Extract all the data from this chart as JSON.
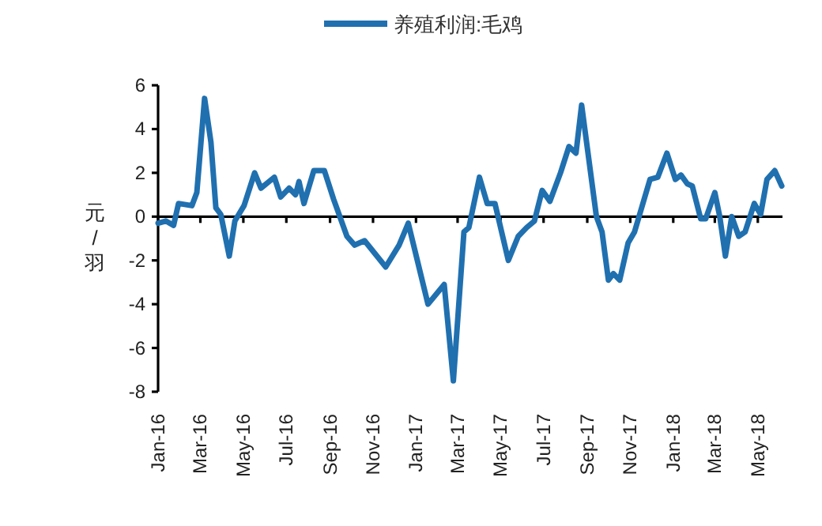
{
  "chart_data": {
    "type": "line",
    "ylabel": "元/羽",
    "legend": "top",
    "xlim": [
      "2016-01-01",
      "2018-06-05"
    ],
    "ylim": [
      -8,
      6
    ],
    "yticks": [
      -8,
      -6,
      -4,
      -2,
      0,
      2,
      4,
      6
    ],
    "xticks": [
      {
        "value": "2016-01-01",
        "label": "Jan-16"
      },
      {
        "value": "2016-03-01",
        "label": "Mar-16"
      },
      {
        "value": "2016-05-01",
        "label": "May-16"
      },
      {
        "value": "2016-07-01",
        "label": "Jul-16"
      },
      {
        "value": "2016-09-01",
        "label": "Sep-16"
      },
      {
        "value": "2016-11-01",
        "label": "Nov-16"
      },
      {
        "value": "2017-01-01",
        "label": "Jan-17"
      },
      {
        "value": "2017-03-01",
        "label": "Mar-17"
      },
      {
        "value": "2017-05-01",
        "label": "May-17"
      },
      {
        "value": "2017-07-01",
        "label": "Jul-17"
      },
      {
        "value": "2017-09-01",
        "label": "Sep-17"
      },
      {
        "value": "2017-11-01",
        "label": "Nov-17"
      },
      {
        "value": "2018-01-01",
        "label": "Jan-18"
      },
      {
        "value": "2018-03-01",
        "label": "Mar-18"
      },
      {
        "value": "2018-05-01",
        "label": "May-18"
      }
    ],
    "x": [
      "2016-01-01",
      "2016-01-12",
      "2016-01-23",
      "2016-01-30",
      "2016-02-18",
      "2016-02-25",
      "2016-03-07",
      "2016-03-16",
      "2016-03-23",
      "2016-03-30",
      "2016-04-11",
      "2016-04-19",
      "2016-05-02",
      "2016-05-17",
      "2016-05-26",
      "2016-06-14",
      "2016-06-23",
      "2016-07-05",
      "2016-07-14",
      "2016-07-19",
      "2016-07-26",
      "2016-08-09",
      "2016-08-24",
      "2016-09-06",
      "2016-09-25",
      "2016-10-06",
      "2016-10-20",
      "2016-11-19",
      "2016-12-08",
      "2016-12-21",
      "2017-01-18",
      "2017-02-10",
      "2017-02-23",
      "2017-03-10",
      "2017-03-17",
      "2017-04-01",
      "2017-04-12",
      "2017-04-23",
      "2017-05-12",
      "2017-05-26",
      "2017-06-07",
      "2017-06-18",
      "2017-06-29",
      "2017-07-10",
      "2017-07-25",
      "2017-08-06",
      "2017-08-16",
      "2017-08-24",
      "2017-09-14",
      "2017-09-22",
      "2017-10-01",
      "2017-10-08",
      "2017-10-17",
      "2017-10-29",
      "2017-11-07",
      "2017-11-29",
      "2017-12-10",
      "2017-12-23",
      "2018-01-04",
      "2018-01-12",
      "2018-01-21",
      "2018-01-28",
      "2018-02-09",
      "2018-02-16",
      "2018-03-01",
      "2018-03-08",
      "2018-03-16",
      "2018-03-25",
      "2018-04-04",
      "2018-04-13",
      "2018-04-26",
      "2018-05-05",
      "2018-05-14",
      "2018-05-25",
      "2018-06-04"
    ],
    "series": [
      {
        "name": "养殖利润:毛鸡",
        "color": "#2070b0",
        "values": [
          -0.3,
          -0.2,
          -0.4,
          0.6,
          0.5,
          1.1,
          5.4,
          3.4,
          0.4,
          0.1,
          -1.8,
          -0.2,
          0.5,
          2.0,
          1.3,
          1.8,
          0.9,
          1.3,
          1.0,
          1.6,
          0.6,
          2.1,
          2.1,
          0.8,
          -0.9,
          -1.3,
          -1.1,
          -2.3,
          -1.3,
          -0.3,
          -4.0,
          -3.1,
          -7.5,
          -0.7,
          -0.5,
          1.8,
          0.6,
          0.6,
          -2.0,
          -0.9,
          -0.5,
          -0.2,
          1.2,
          0.7,
          2.0,
          3.2,
          2.9,
          5.1,
          0.0,
          -0.7,
          -2.9,
          -2.6,
          -2.9,
          -1.2,
          -0.7,
          1.7,
          1.8,
          2.9,
          1.7,
          1.9,
          1.5,
          1.4,
          -0.1,
          -0.1,
          1.1,
          0.0,
          -1.8,
          0.0,
          -0.9,
          -0.7,
          0.6,
          0.1,
          1.7,
          2.1,
          1.4
        ]
      }
    ]
  }
}
